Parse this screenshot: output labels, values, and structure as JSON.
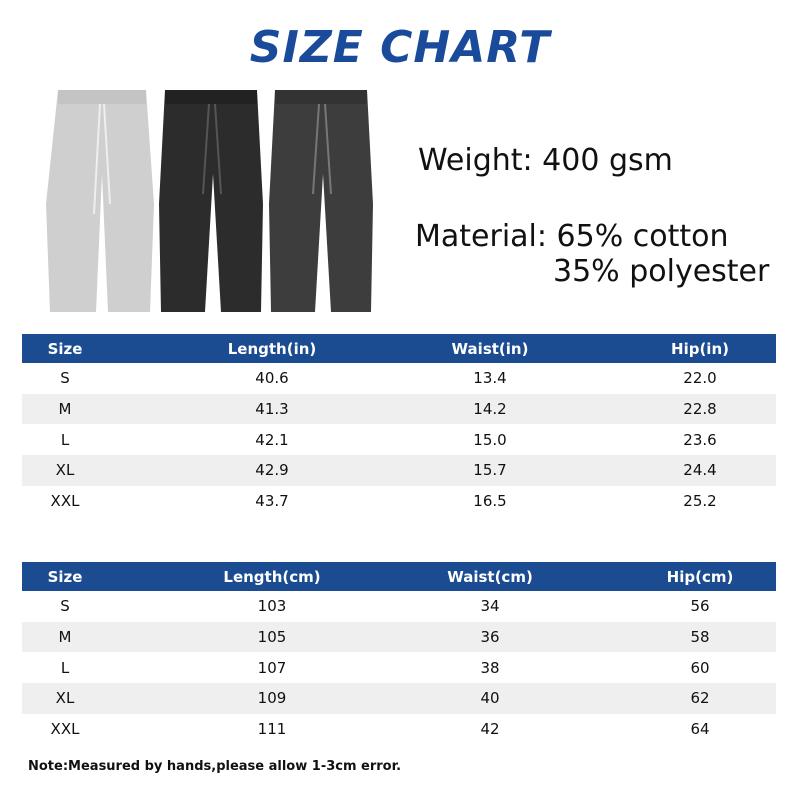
{
  "header": {
    "title": "SIZE CHART"
  },
  "specs": {
    "weight": "Weight: 400 gsm",
    "material": "Material: 65% cotton",
    "material_2": "35% polyester"
  },
  "tables": [
    {
      "columns": [
        "Size",
        "Length(in)",
        "Waist(in)",
        "Hip(in)"
      ],
      "rows": [
        [
          "S",
          "40.6",
          "13.4",
          "22.0"
        ],
        [
          "M",
          "41.3",
          "14.2",
          "22.8"
        ],
        [
          "L",
          "42.1",
          "15.0",
          "23.6"
        ],
        [
          "XL",
          "42.9",
          "15.7",
          "24.4"
        ],
        [
          "XXL",
          "43.7",
          "16.5",
          "25.2"
        ]
      ]
    },
    {
      "columns": [
        "Size",
        "Length(cm)",
        "Waist(cm)",
        "Hip(cm)"
      ],
      "rows": [
        [
          "S",
          "103",
          "34",
          "56"
        ],
        [
          "M",
          "105",
          "36",
          "58"
        ],
        [
          "L",
          "107",
          "38",
          "60"
        ],
        [
          "XL",
          "109",
          "40",
          "62"
        ],
        [
          "XXL",
          "111",
          "42",
          "64"
        ]
      ]
    }
  ],
  "note": "Note:Measured by hands,please allow 1-3cm error."
}
